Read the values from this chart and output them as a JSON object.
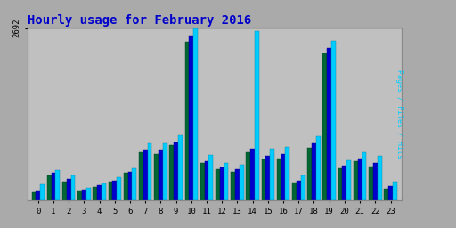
{
  "title": "Hourly usage for February 2016",
  "title_color": "#0000cc",
  "title_fontsize": 10,
  "background_color": "#aaaaaa",
  "plot_bg_color": "#c0c0c0",
  "ymax": 2692,
  "ytick_label": "2692",
  "hours": [
    0,
    1,
    2,
    3,
    4,
    5,
    6,
    7,
    8,
    9,
    10,
    11,
    12,
    13,
    14,
    15,
    16,
    17,
    18,
    19,
    20,
    21,
    22,
    23
  ],
  "pages": [
    130,
    390,
    300,
    150,
    210,
    290,
    430,
    760,
    730,
    860,
    2480,
    590,
    490,
    450,
    750,
    650,
    660,
    280,
    830,
    2300,
    510,
    620,
    530,
    190
  ],
  "files": [
    160,
    430,
    340,
    165,
    240,
    310,
    450,
    790,
    790,
    910,
    2580,
    620,
    520,
    490,
    810,
    700,
    730,
    310,
    890,
    2380,
    550,
    660,
    590,
    230
  ],
  "hits": [
    250,
    470,
    400,
    200,
    270,
    370,
    510,
    900,
    900,
    1020,
    2692,
    710,
    590,
    560,
    2650,
    810,
    840,
    400,
    1010,
    2490,
    630,
    760,
    700,
    290
  ],
  "pages_color": "#006633",
  "files_color": "#0000cc",
  "hits_color": "#00ccff",
  "bar_width": 0.28,
  "grid_color": "#aaaaaa",
  "grid_linewidth": 0.8
}
